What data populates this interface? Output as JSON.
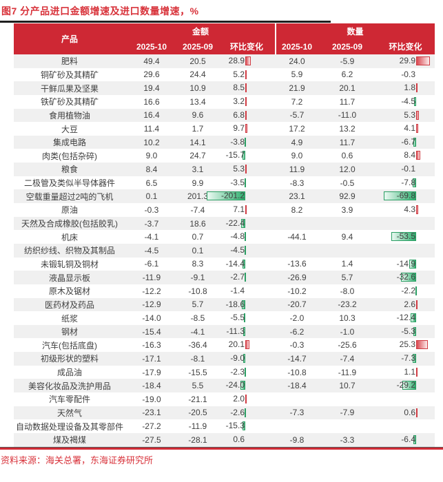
{
  "title": "图7  分产品进口金额增速及进口数量增速，%",
  "source": "资料来源：海关总署，东海证券研究所",
  "table": {
    "product_header": "产品",
    "group_headers": [
      "金额",
      "数量"
    ],
    "sub_headers": [
      "2025-10",
      "2025-09",
      "环比变化"
    ]
  },
  "colors": {
    "header_bg": "#ce2834",
    "title_red": "#d8323a",
    "stripe_gray": "#f0f0f0",
    "bar_positive": "#d94a52",
    "bar_negative": "#2fae6e",
    "text": "#3f3f3f"
  },
  "chart_data": {
    "type": "table",
    "title": "图7 分产品进口金额增速及进口数量增速，%",
    "columns": [
      "产品",
      "金额 2025-10",
      "金额 2025-09",
      "金额 环比变化",
      "数量 2025-10",
      "数量 2025-09",
      "数量 环比变化"
    ],
    "bar_format": "环比变化列带数据条：正值红色向右，负值绿色向左",
    "rows": [
      [
        "肥料",
        49.4,
        20.5,
        28.9,
        24.0,
        -5.9,
        29.9
      ],
      [
        "铜矿砂及其精矿",
        29.6,
        24.4,
        5.2,
        5.9,
        6.2,
        -0.3
      ],
      [
        "干鲜瓜果及坚果",
        19.4,
        10.9,
        8.5,
        21.9,
        20.1,
        1.8
      ],
      [
        "铁矿砂及其精矿",
        16.6,
        13.4,
        3.2,
        7.2,
        11.7,
        -4.5
      ],
      [
        "食用植物油",
        16.4,
        9.6,
        6.8,
        -5.7,
        -11.0,
        5.3
      ],
      [
        "大豆",
        11.4,
        1.7,
        9.7,
        17.2,
        13.2,
        4.1
      ],
      [
        "集成电路",
        10.2,
        14.1,
        -3.8,
        4.9,
        11.7,
        -6.7
      ],
      [
        "肉类(包括杂碎)",
        9.0,
        24.7,
        -15.7,
        9.0,
        0.6,
        8.4
      ],
      [
        "粮食",
        8.4,
        3.1,
        5.3,
        11.9,
        12.0,
        -0.1
      ],
      [
        "二极管及类似半导体器件",
        6.5,
        9.9,
        -3.5,
        -8.3,
        -0.5,
        -7.8
      ],
      [
        "空载重量超过2吨的飞机",
        0.1,
        201.3,
        -201.2,
        23.1,
        92.9,
        -69.8
      ],
      [
        "原油",
        -0.3,
        -7.4,
        7.1,
        8.2,
        3.9,
        4.3
      ],
      [
        "天然及合成橡胶(包括胶乳)",
        -3.7,
        18.6,
        -22.4,
        null,
        null,
        null
      ],
      [
        "机床",
        -4.1,
        0.7,
        -4.8,
        -44.1,
        9.4,
        -53.5
      ],
      [
        "纺织纱线、织物及其制品",
        -4.5,
        0.1,
        -4.5,
        null,
        null,
        null
      ],
      [
        "未锻轧铜及铜材",
        -6.1,
        8.3,
        -14.4,
        -13.6,
        1.4,
        -14.9
      ],
      [
        "液晶显示板",
        -11.9,
        -9.1,
        -2.7,
        -26.9,
        5.7,
        -32.6
      ],
      [
        "原木及锯材",
        -12.2,
        -10.8,
        -1.4,
        -10.2,
        -8.0,
        -2.2
      ],
      [
        "医药材及药品",
        -12.9,
        5.7,
        -18.6,
        -20.7,
        -23.2,
        2.6
      ],
      [
        "纸浆",
        -14.0,
        -8.5,
        -5.5,
        -2.0,
        10.3,
        -12.4
      ],
      [
        "钢材",
        -15.4,
        -4.1,
        -11.3,
        -6.2,
        -1.0,
        -5.3
      ],
      [
        "汽车(包括底盘)",
        -16.3,
        -36.4,
        20.1,
        -0.3,
        -25.6,
        25.3
      ],
      [
        "初级形状的塑料",
        -17.1,
        -8.1,
        -9.0,
        -14.7,
        -7.4,
        -7.3
      ],
      [
        "成品油",
        -17.9,
        -15.5,
        -2.3,
        -10.8,
        -11.9,
        1.1
      ],
      [
        "美容化妆品及洗护用品",
        -18.4,
        5.5,
        -24.0,
        -18.4,
        10.7,
        -29.2
      ],
      [
        "汽车零配件",
        -19.0,
        -21.1,
        2.0,
        null,
        null,
        null
      ],
      [
        "天然气",
        -23.1,
        -20.5,
        -2.6,
        -7.3,
        -7.9,
        0.6
      ],
      [
        "自动数据处理设备及其零部件",
        -27.2,
        -11.9,
        -15.3,
        null,
        null,
        null
      ],
      [
        "煤及褐煤",
        -27.5,
        -28.1,
        0.6,
        -9.8,
        -3.3,
        -6.4
      ]
    ]
  }
}
